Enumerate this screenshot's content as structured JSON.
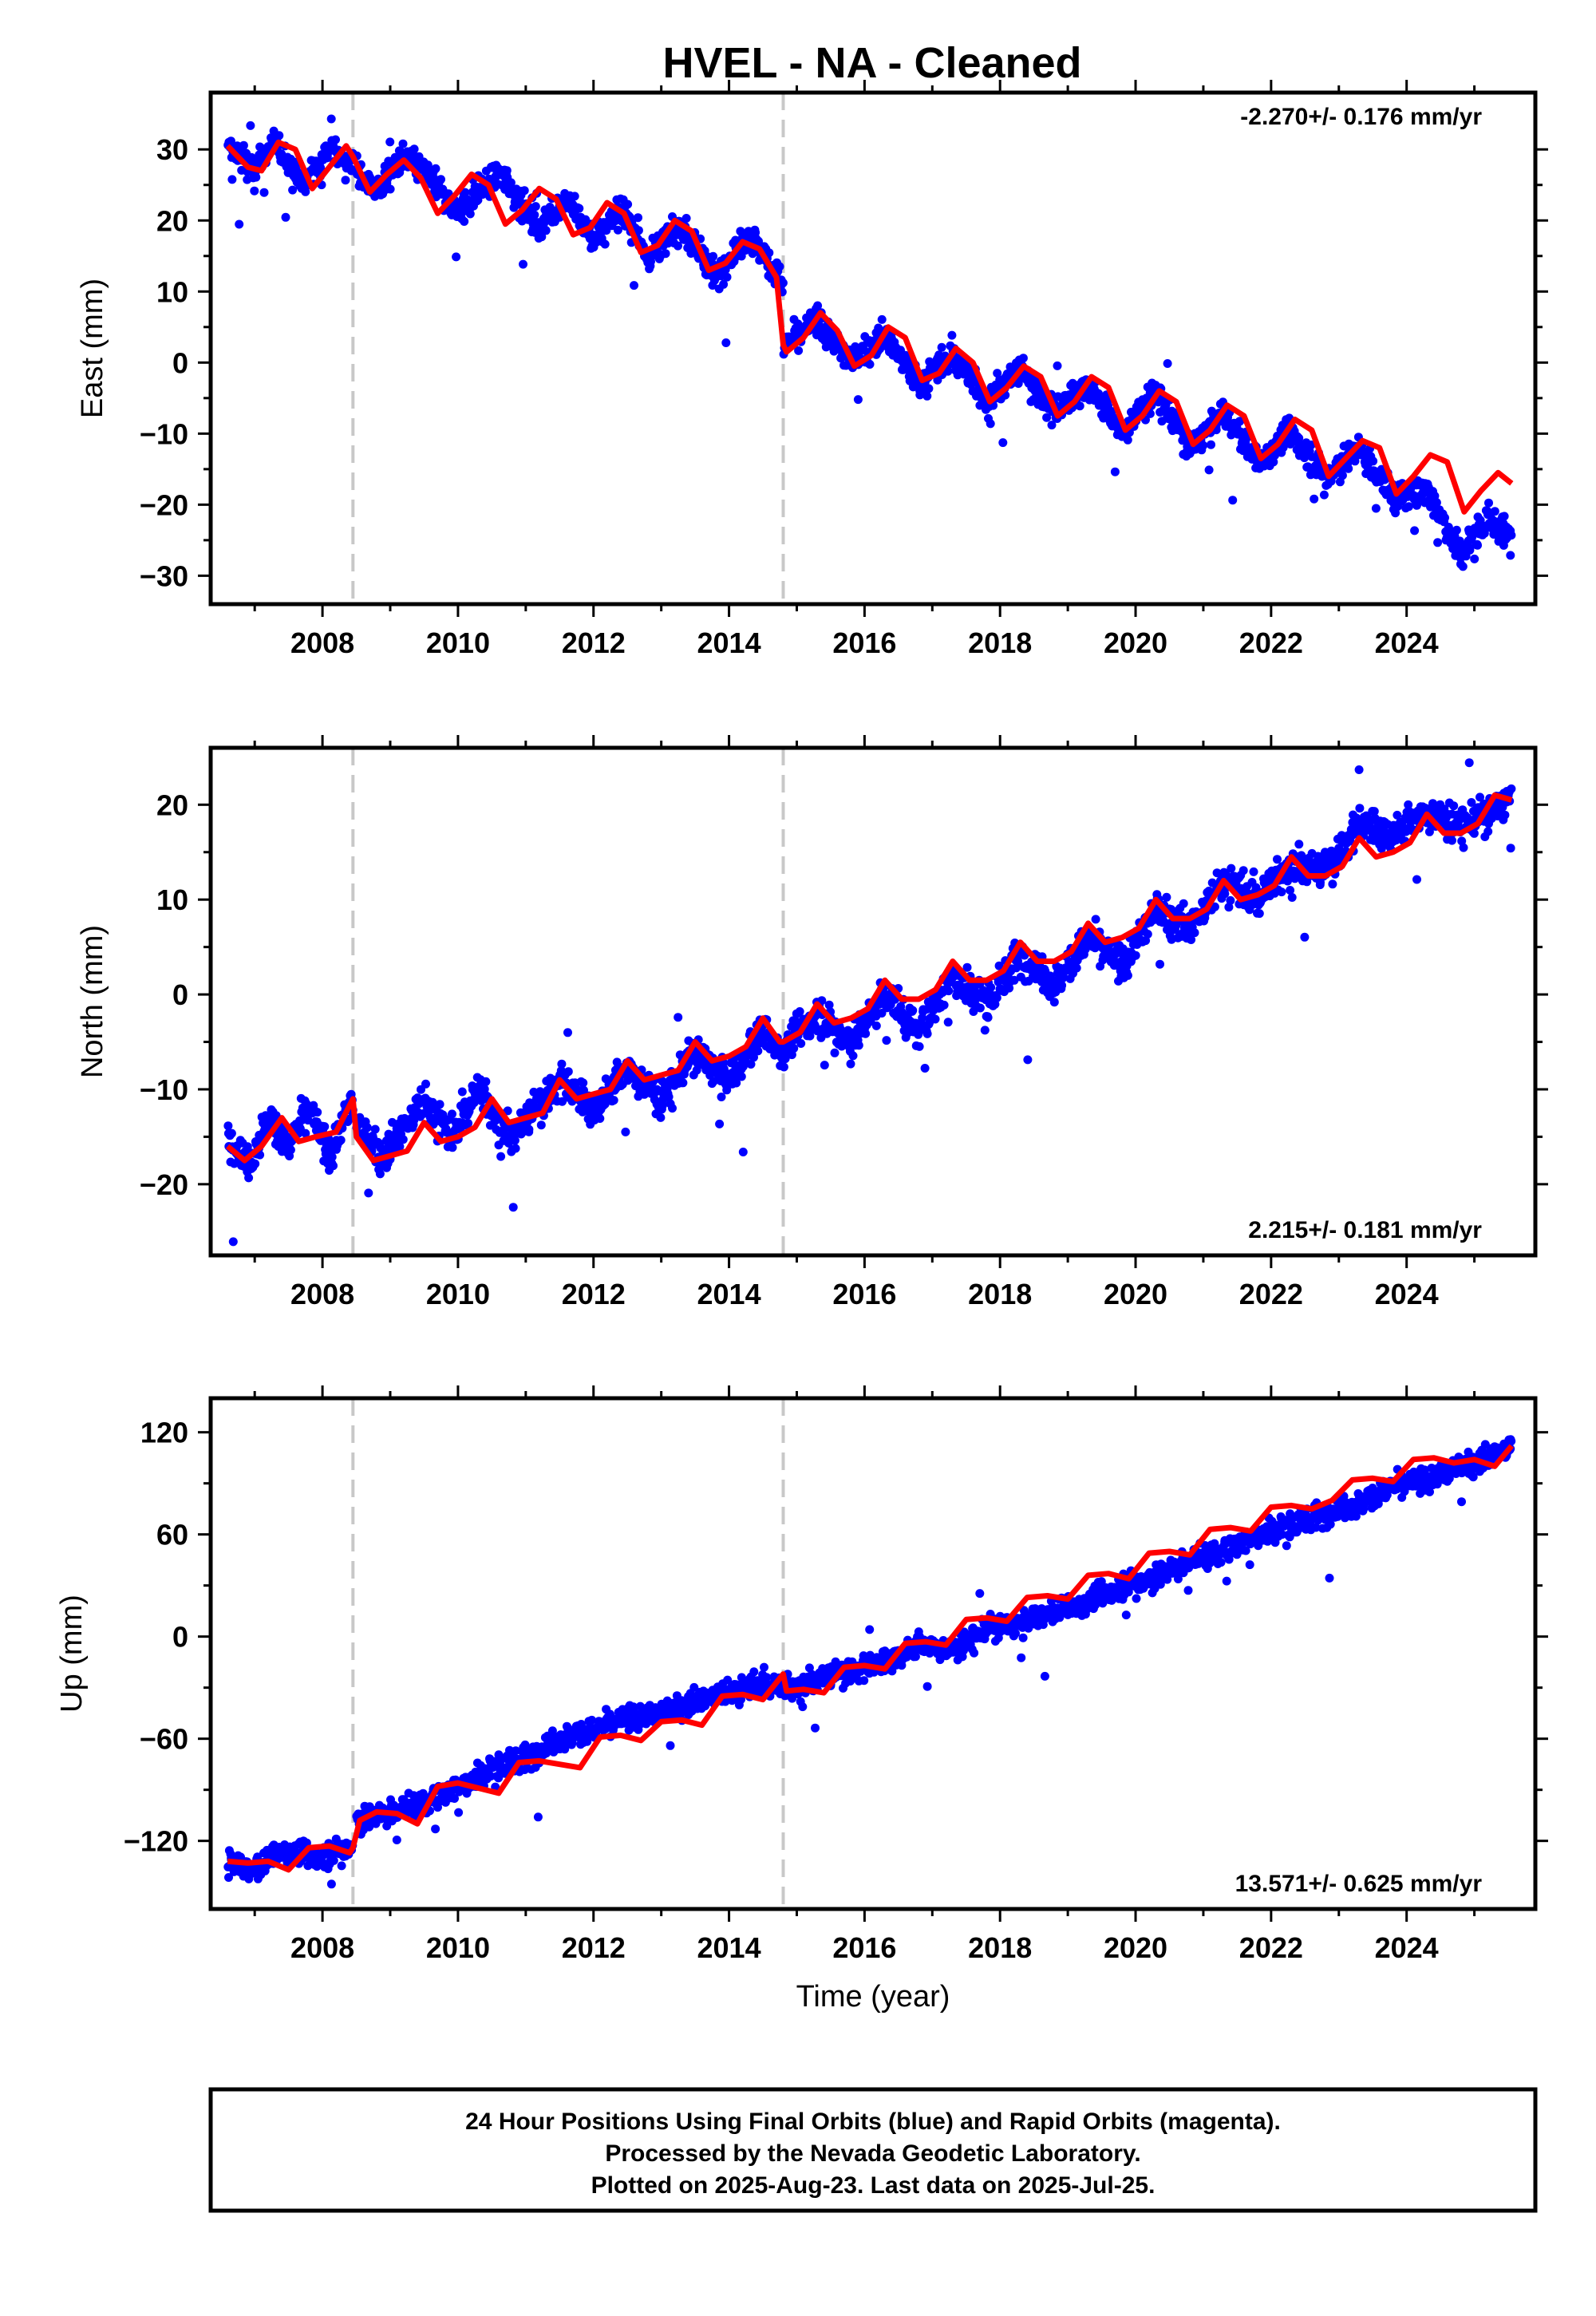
{
  "title": "HVEL  - NA - Cleaned",
  "colors": {
    "final_orbits": "#0000ff",
    "model_fit": "#ff0000",
    "antenna_change": "#c8c8c8",
    "frame": "#000000"
  },
  "chart_data": [
    {
      "type": "scatter",
      "ylabel": "East (mm)",
      "xlabel": "",
      "xlim": [
        2006.35,
        2025.9
      ],
      "ylim": [
        -34,
        38
      ],
      "xticks": [
        2008,
        2010,
        2012,
        2014,
        2016,
        2018,
        2020,
        2022,
        2024
      ],
      "yticks": [
        -30,
        -20,
        -10,
        0,
        10,
        20,
        30
      ],
      "ytick_labels": [
        "−30",
        "−20",
        "−10",
        "0",
        "10",
        "20",
        "30"
      ],
      "rate_text": "-2.270+/- 0.176 mm/yr",
      "rate_position": "top-right",
      "breaks": [
        2008.45,
        2014.8
      ],
      "series": [
        {
          "role": "daily positions",
          "segments": [
            {
              "x": [
                2006.6,
                2007.0,
                2007.3,
                2007.7,
                2008.1,
                2008.45
              ],
              "y": [
                30,
                27,
                31,
                25,
                30,
                28
              ]
            },
            {
              "x": [
                2008.5,
                2008.8,
                2009.2,
                2009.6,
                2010.0,
                2010.6,
                2011.2,
                2011.6,
                2012.0,
                2012.4,
                2012.8,
                2013.3,
                2013.8,
                2014.3,
                2014.8
              ],
              "y": [
                27,
                24,
                29,
                26,
                21,
                27,
                19,
                23,
                17,
                22,
                15,
                19,
                12,
                18,
                11
              ]
            },
            {
              "x": [
                2014.8,
                2015.3,
                2015.8,
                2016.3,
                2016.8,
                2017.3,
                2017.8,
                2018.3,
                2018.8,
                2019.3,
                2019.8,
                2020.3,
                2020.8,
                2021.3,
                2021.8,
                2022.3,
                2022.8,
                2023.3,
                2023.8,
                2024.3,
                2024.8,
                2025.2,
                2025.55
              ],
              "y": [
                2,
                6,
                0,
                4,
                -3,
                1,
                -5,
                -1,
                -7,
                -3,
                -10,
                -4,
                -12,
                -7,
                -14,
                -10,
                -16,
                -12,
                -19,
                -18,
                -27,
                -22,
                -25
              ]
            }
          ]
        },
        {
          "role": "model fit",
          "x": [
            2006.6,
            2006.9,
            2007.1,
            2007.35,
            2007.6,
            2007.85,
            2008.1,
            2008.35,
            2008.45,
            2008.7,
            2008.95,
            2009.2,
            2009.45,
            2009.7,
            2009.95,
            2010.2,
            2010.45,
            2010.7,
            2010.95,
            2011.2,
            2011.45,
            2011.7,
            2011.95,
            2012.2,
            2012.45,
            2012.7,
            2012.95,
            2013.2,
            2013.45,
            2013.7,
            2013.95,
            2014.2,
            2014.45,
            2014.7,
            2014.8,
            2014.85,
            2015.1,
            2015.35,
            2015.6,
            2015.85,
            2016.1,
            2016.35,
            2016.6,
            2016.85,
            2017.1,
            2017.35,
            2017.6,
            2017.85,
            2018.1,
            2018.35,
            2018.6,
            2018.85,
            2019.1,
            2019.35,
            2019.6,
            2019.85,
            2020.1,
            2020.35,
            2020.6,
            2020.85,
            2021.1,
            2021.35,
            2021.6,
            2021.85,
            2022.1,
            2022.35,
            2022.6,
            2022.85,
            2023.1,
            2023.35,
            2023.6,
            2023.85,
            2024.1,
            2024.35,
            2024.6,
            2024.85,
            2025.1,
            2025.35,
            2025.55
          ],
          "y": [
            30.5,
            27.5,
            27,
            31,
            30,
            24.5,
            27.5,
            30.5,
            29,
            24,
            26.5,
            28.5,
            26,
            21,
            23.5,
            26.5,
            25,
            19.5,
            21.5,
            24.5,
            23,
            18,
            19,
            22.5,
            21,
            15.5,
            16.5,
            20,
            18.5,
            13,
            14,
            17,
            16,
            12,
            2.5,
            1.5,
            3.5,
            7,
            4.5,
            -0.5,
            1,
            5,
            3.5,
            -2.5,
            -1.5,
            2,
            0,
            -5.5,
            -3.5,
            -0.5,
            -2,
            -7.5,
            -5.5,
            -2,
            -3.5,
            -9.5,
            -7.5,
            -4,
            -5.5,
            -11.5,
            -9.5,
            -6,
            -7.5,
            -13.5,
            -11.5,
            -8,
            -9.5,
            -16,
            -13.5,
            -11,
            -12,
            -18.5,
            -16,
            -13,
            -14,
            -21,
            -18,
            -15.5,
            -17
          ]
        }
      ]
    },
    {
      "type": "scatter",
      "ylabel": "North (mm)",
      "xlabel": "",
      "xlim": [
        2006.35,
        2025.9
      ],
      "ylim": [
        -27.5,
        26
      ],
      "xticks": [
        2008,
        2010,
        2012,
        2014,
        2016,
        2018,
        2020,
        2022,
        2024
      ],
      "yticks": [
        -20,
        -10,
        0,
        10,
        20
      ],
      "ytick_labels": [
        "−20",
        "−10",
        "0",
        "10",
        "20"
      ],
      "rate_text": "2.215+/- 0.181 mm/yr",
      "rate_position": "bottom-right",
      "breaks": [
        2008.45,
        2014.8
      ],
      "series": [
        {
          "role": "daily positions",
          "segments": [
            {
              "x": [
                2006.6,
                2006.9,
                2007.2,
                2007.5,
                2007.8,
                2008.1,
                2008.45
              ],
              "y": [
                -15,
                -18,
                -13,
                -16,
                -12,
                -17,
                -11
              ]
            },
            {
              "x": [
                2008.5,
                2008.9,
                2009.5,
                2009.9,
                2010.3,
                2010.8,
                2011.5,
                2012.0,
                2012.5,
                2013.0,
                2013.5,
                2014.0,
                2014.5,
                2014.8
              ],
              "y": [
                -14,
                -17,
                -11,
                -15,
                -10,
                -15,
                -9,
                -12,
                -8,
                -11,
                -6,
                -9,
                -4,
                -6
              ]
            },
            {
              "x": [
                2014.8,
                2015.3,
                2015.8,
                2016.3,
                2016.8,
                2017.3,
                2017.8,
                2018.3,
                2018.8,
                2019.3,
                2019.8,
                2020.3,
                2020.8,
                2021.3,
                2021.8,
                2022.3,
                2022.8,
                2023.3,
                2023.8,
                2024.3,
                2024.8,
                2025.2,
                2025.55
              ],
              "y": [
                -6,
                -2,
                -5,
                0,
                -4,
                2,
                -1,
                4,
                1,
                6,
                3,
                9,
                7,
                12,
                10,
                14,
                13,
                18,
                17,
                19,
                18,
                19,
                21
              ]
            }
          ]
        },
        {
          "role": "model fit",
          "x": [
            2006.6,
            2006.85,
            2007.1,
            2007.4,
            2007.65,
            2007.9,
            2008.2,
            2008.45,
            2008.5,
            2008.75,
            2009.0,
            2009.25,
            2009.5,
            2009.75,
            2010.0,
            2010.25,
            2010.5,
            2010.75,
            2011.0,
            2011.25,
            2011.5,
            2011.75,
            2012.0,
            2012.25,
            2012.5,
            2012.75,
            2013.0,
            2013.25,
            2013.5,
            2013.75,
            2014.0,
            2014.25,
            2014.5,
            2014.75,
            2014.8,
            2015.05,
            2015.3,
            2015.55,
            2015.8,
            2016.05,
            2016.3,
            2016.55,
            2016.8,
            2017.05,
            2017.3,
            2017.55,
            2017.8,
            2018.05,
            2018.3,
            2018.55,
            2018.8,
            2019.05,
            2019.3,
            2019.55,
            2019.8,
            2020.05,
            2020.3,
            2020.55,
            2020.8,
            2021.05,
            2021.3,
            2021.55,
            2021.8,
            2022.05,
            2022.3,
            2022.55,
            2022.8,
            2023.05,
            2023.3,
            2023.55,
            2023.8,
            2024.05,
            2024.3,
            2024.55,
            2024.8,
            2025.05,
            2025.3,
            2025.55
          ],
          "y": [
            -16,
            -17.5,
            -16,
            -13,
            -15.5,
            -15,
            -14.5,
            -11,
            -15,
            -17.5,
            -17,
            -16.5,
            -13.5,
            -15.5,
            -15,
            -14,
            -11,
            -13.5,
            -13,
            -12.5,
            -9,
            -11,
            -10.5,
            -10,
            -7,
            -9,
            -8.5,
            -8,
            -5,
            -7,
            -6.5,
            -5.5,
            -2.5,
            -5,
            -5,
            -4,
            -1,
            -3,
            -2.5,
            -1.5,
            1.5,
            -0.5,
            -0.5,
            0.5,
            3.5,
            1.5,
            1.5,
            2.5,
            5.5,
            3.5,
            3.5,
            4.5,
            7.5,
            5.5,
            6,
            7,
            10,
            8,
            8,
            9,
            12,
            10,
            10.5,
            11.5,
            14.5,
            12.5,
            12.5,
            13.5,
            16.5,
            14.5,
            15,
            16,
            19,
            17,
            17,
            18,
            21,
            20.5
          ]
        }
      ]
    },
    {
      "type": "scatter",
      "ylabel": "Up (mm)",
      "xlabel": "Time (year)",
      "xlim": [
        2006.35,
        2025.9
      ],
      "ylim": [
        -160,
        140
      ],
      "xticks": [
        2008,
        2010,
        2012,
        2014,
        2016,
        2018,
        2020,
        2022,
        2024
      ],
      "yticks": [
        -120,
        -60,
        0,
        60,
        120
      ],
      "ytick_labels": [
        "−120",
        "−60",
        "0",
        "60",
        "120"
      ],
      "rate_text": "13.571+/- 0.625 mm/yr",
      "rate_position": "bottom-right",
      "breaks": [
        2008.45,
        2014.8
      ],
      "series": [
        {
          "role": "daily positions",
          "segments": [
            {
              "x": [
                2006.6,
                2007.0,
                2007.4,
                2007.8,
                2008.1,
                2008.45
              ],
              "y": [
                -132,
                -138,
                -125,
                -130,
                -128,
                -122
              ]
            },
            {
              "x": [
                2008.5,
                2009.0,
                2009.5,
                2010.0,
                2010.5,
                2011.0,
                2011.5,
                2012.0,
                2012.5,
                2013.0,
                2013.5,
                2014.0,
                2014.5,
                2014.8
              ],
              "y": [
                -108,
                -103,
                -98,
                -88,
                -78,
                -72,
                -60,
                -55,
                -48,
                -45,
                -38,
                -32,
                -28,
                -30
              ]
            },
            {
              "x": [
                2014.8,
                2015.3,
                2015.8,
                2016.3,
                2016.8,
                2017.3,
                2017.8,
                2018.3,
                2018.8,
                2019.3,
                2019.8,
                2020.3,
                2020.8,
                2021.3,
                2021.8,
                2022.3,
                2022.8,
                2023.3,
                2023.8,
                2024.3,
                2024.8,
                2025.2,
                2025.55
              ],
              "y": [
                -30,
                -25,
                -20,
                -15,
                -5,
                -8,
                5,
                8,
                15,
                20,
                30,
                35,
                45,
                50,
                60,
                65,
                72,
                78,
                88,
                92,
                100,
                105,
                112
              ]
            }
          ]
        },
        {
          "role": "model fit",
          "x": [
            2006.6,
            2006.9,
            2007.2,
            2007.5,
            2007.8,
            2008.1,
            2008.4,
            2008.45,
            2008.55,
            2008.8,
            2009.1,
            2009.4,
            2009.7,
            2010.0,
            2010.3,
            2010.6,
            2010.9,
            2011.2,
            2011.5,
            2011.8,
            2012.1,
            2012.4,
            2012.7,
            2013.0,
            2013.3,
            2013.6,
            2013.9,
            2014.2,
            2014.5,
            2014.8,
            2014.85,
            2015.1,
            2015.4,
            2015.7,
            2016.0,
            2016.3,
            2016.6,
            2016.9,
            2017.2,
            2017.5,
            2017.8,
            2018.1,
            2018.4,
            2018.7,
            2019.0,
            2019.3,
            2019.6,
            2019.9,
            2020.2,
            2020.5,
            2020.8,
            2021.1,
            2021.4,
            2021.7,
            2022.0,
            2022.3,
            2022.6,
            2022.9,
            2023.2,
            2023.5,
            2023.8,
            2024.1,
            2024.4,
            2024.7,
            2025.0,
            2025.3,
            2025.55
          ],
          "y": [
            -132,
            -133,
            -132,
            -137,
            -124,
            -123,
            -127,
            -124,
            -108,
            -103,
            -104,
            -110,
            -88,
            -86,
            -89,
            -92,
            -74,
            -73,
            -75,
            -77,
            -59,
            -58,
            -61,
            -50,
            -49,
            -52,
            -35,
            -34,
            -37,
            -22,
            -32,
            -31,
            -33,
            -18,
            -17,
            -19,
            -4,
            -3,
            -5,
            10,
            11,
            9,
            23,
            24,
            22,
            36,
            37,
            34,
            49,
            50,
            48,
            63,
            64,
            62,
            76,
            77,
            75,
            80,
            92,
            93,
            91,
            104,
            105,
            102,
            104,
            100,
            112
          ]
        }
      ]
    }
  ],
  "footer": {
    "line1": "24 Hour Positions Using Final Orbits (blue) and Rapid Orbits (magenta).",
    "line2": "Processed by the Nevada Geodetic Laboratory.",
    "line3": "Plotted on 2025-Aug-23. Last data on 2025-Jul-25."
  }
}
